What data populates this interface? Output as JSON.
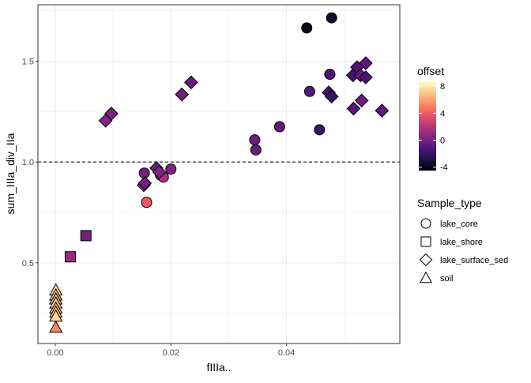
{
  "chart_data": {
    "type": "scatter",
    "xlabel": "fIIIa..",
    "ylabel": "sum_IIIa_div_IIa",
    "xlim": [
      -0.003,
      0.0596
    ],
    "ylim": [
      0.1,
      1.78
    ],
    "x_ticks": [
      0.0,
      0.02,
      0.04
    ],
    "x_tick_labels": [
      "0.00",
      "0.02",
      "0.04"
    ],
    "y_ticks": [
      0.5,
      1.0,
      1.5
    ],
    "y_tick_labels": [
      "0.5",
      "1.0",
      "1.5"
    ],
    "grid": true,
    "reference_line": {
      "y": 1.0,
      "style": "dashed"
    },
    "color_legend": {
      "title": "offset",
      "min": -4.5,
      "max": 8.6,
      "ticks": [
        8,
        4,
        0,
        -4
      ],
      "tick_labels": [
        "8",
        "4",
        "0",
        "-4"
      ],
      "stops": [
        "#000004",
        "#1d1147",
        "#51127c",
        "#822681",
        "#b73779",
        "#e75263",
        "#fc8961",
        "#fec488",
        "#fcfdbf"
      ]
    },
    "shape_legend": {
      "title": "Sample_type",
      "entries": [
        {
          "label": "lake_core",
          "shape": "circle"
        },
        {
          "label": "lake_shore",
          "shape": "square"
        },
        {
          "label": "lake_surface_sed",
          "shape": "diamond"
        },
        {
          "label": "soil",
          "shape": "triangle"
        }
      ]
    },
    "points": [
      {
        "x": 0.0435,
        "y": 1.665,
        "offset": -3.8,
        "shape": "circle"
      },
      {
        "x": 0.0478,
        "y": 1.715,
        "offset": -3.6,
        "shape": "circle"
      },
      {
        "x": 0.0475,
        "y": 1.435,
        "offset": -1.2,
        "shape": "circle"
      },
      {
        "x": 0.044,
        "y": 1.35,
        "offset": -1.0,
        "shape": "circle"
      },
      {
        "x": 0.0388,
        "y": 1.175,
        "offset": -0.6,
        "shape": "circle"
      },
      {
        "x": 0.0457,
        "y": 1.16,
        "offset": -1.8,
        "shape": "circle"
      },
      {
        "x": 0.0345,
        "y": 1.11,
        "offset": -0.3,
        "shape": "circle"
      },
      {
        "x": 0.0347,
        "y": 1.06,
        "offset": -0.5,
        "shape": "circle"
      },
      {
        "x": 0.0154,
        "y": 0.945,
        "offset": -0.1,
        "shape": "circle"
      },
      {
        "x": 0.02,
        "y": 0.965,
        "offset": 0.2,
        "shape": "circle"
      },
      {
        "x": 0.0182,
        "y": 0.935,
        "offset": 0.8,
        "shape": "circle"
      },
      {
        "x": 0.0187,
        "y": 0.925,
        "offset": 1.6,
        "shape": "circle"
      },
      {
        "x": 0.0158,
        "y": 0.8,
        "offset": 3.9,
        "shape": "circle"
      },
      {
        "x": 0.0026,
        "y": 0.53,
        "offset": 1.1,
        "shape": "square"
      },
      {
        "x": 0.0053,
        "y": 0.635,
        "offset": 0.0,
        "shape": "square"
      },
      {
        "x": 0.0087,
        "y": 1.205,
        "offset": 0.4,
        "shape": "diamond"
      },
      {
        "x": 0.0097,
        "y": 1.24,
        "offset": 0.1,
        "shape": "diamond"
      },
      {
        "x": 0.0219,
        "y": 1.335,
        "offset": -0.1,
        "shape": "diamond"
      },
      {
        "x": 0.0235,
        "y": 1.395,
        "offset": -0.5,
        "shape": "diamond"
      },
      {
        "x": 0.0175,
        "y": 0.97,
        "offset": -0.4,
        "shape": "diamond"
      },
      {
        "x": 0.018,
        "y": 0.95,
        "offset": 0.3,
        "shape": "diamond"
      },
      {
        "x": 0.0153,
        "y": 0.885,
        "offset": 0.9,
        "shape": "diamond"
      },
      {
        "x": 0.0155,
        "y": 0.895,
        "offset": -0.2,
        "shape": "diamond"
      },
      {
        "x": 0.0473,
        "y": 1.345,
        "offset": -1.7,
        "shape": "diamond"
      },
      {
        "x": 0.0478,
        "y": 1.325,
        "offset": -2.0,
        "shape": "diamond"
      },
      {
        "x": 0.0515,
        "y": 1.43,
        "offset": -1.4,
        "shape": "diamond"
      },
      {
        "x": 0.0522,
        "y": 1.47,
        "offset": -1.1,
        "shape": "diamond"
      },
      {
        "x": 0.0528,
        "y": 1.43,
        "offset": -0.6,
        "shape": "diamond"
      },
      {
        "x": 0.0537,
        "y": 1.49,
        "offset": -0.8,
        "shape": "diamond"
      },
      {
        "x": 0.0537,
        "y": 1.42,
        "offset": -1.4,
        "shape": "diamond"
      },
      {
        "x": 0.0516,
        "y": 1.265,
        "offset": -0.9,
        "shape": "diamond"
      },
      {
        "x": 0.053,
        "y": 1.305,
        "offset": -0.4,
        "shape": "diamond"
      },
      {
        "x": 0.0565,
        "y": 1.255,
        "offset": -0.7,
        "shape": "diamond"
      },
      {
        "x": 0.0001,
        "y": 0.365,
        "offset": 7.6,
        "shape": "triangle"
      },
      {
        "x": 0.0001,
        "y": 0.34,
        "offset": 6.8,
        "shape": "triangle"
      },
      {
        "x": 0.0001,
        "y": 0.32,
        "offset": 6.5,
        "shape": "triangle"
      },
      {
        "x": 0.0001,
        "y": 0.3,
        "offset": 7.1,
        "shape": "triangle"
      },
      {
        "x": 0.0001,
        "y": 0.275,
        "offset": 6.2,
        "shape": "triangle"
      },
      {
        "x": 0.0001,
        "y": 0.255,
        "offset": 6.9,
        "shape": "triangle"
      },
      {
        "x": 0.0001,
        "y": 0.235,
        "offset": 7.4,
        "shape": "triangle"
      },
      {
        "x": 0.0001,
        "y": 0.18,
        "offset": 5.2,
        "shape": "triangle"
      }
    ]
  }
}
